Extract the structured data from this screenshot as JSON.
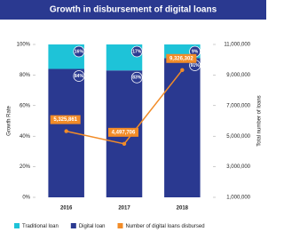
{
  "chart_data": {
    "type": "bar",
    "stacked": true,
    "title": "Growth in disbursement of digital loans",
    "y_label": "Growth Rate",
    "y2_label": "Total number of loans",
    "categories": [
      "2016",
      "2017",
      "2018"
    ],
    "series": [
      {
        "name": "Traditional loan",
        "color": "#1ec3d8",
        "values": [
          16,
          17,
          9
        ],
        "value_labels": [
          "16%",
          "17%",
          "9%"
        ]
      },
      {
        "name": "Digital loan",
        "color": "#2a3990",
        "values": [
          84,
          83,
          91
        ],
        "value_labels": [
          "84%",
          "83%",
          "91%"
        ]
      },
      {
        "name": "Number of digital loans disbursed",
        "color": "#f28c28",
        "type": "line",
        "axis": "y2",
        "values": [
          5325861,
          4497706,
          9326302
        ],
        "value_labels": [
          "5,325,861",
          "4,497,706",
          "9,326,302"
        ]
      }
    ],
    "ylim": [
      0,
      100
    ],
    "yticks": [
      {
        "value": 0,
        "label": "0%"
      },
      {
        "value": 20,
        "label": "20%"
      },
      {
        "value": 40,
        "label": "40%"
      },
      {
        "value": 60,
        "label": "60%"
      },
      {
        "value": 80,
        "label": "80%"
      },
      {
        "value": 100,
        "label": "100%"
      }
    ],
    "y2lim": [
      1000000,
      11000000
    ],
    "y2ticks": [
      {
        "value": 1000000,
        "label": "1,000,000"
      },
      {
        "value": 3000000,
        "label": "3,000,000"
      },
      {
        "value": 5000000,
        "label": "5,000,000"
      },
      {
        "value": 7000000,
        "label": "7,000,000"
      },
      {
        "value": 9000000,
        "label": "9,000,000"
      },
      {
        "value": 11000000,
        "label": "11,000,000"
      }
    ],
    "grid": false,
    "legend": "bottom"
  }
}
